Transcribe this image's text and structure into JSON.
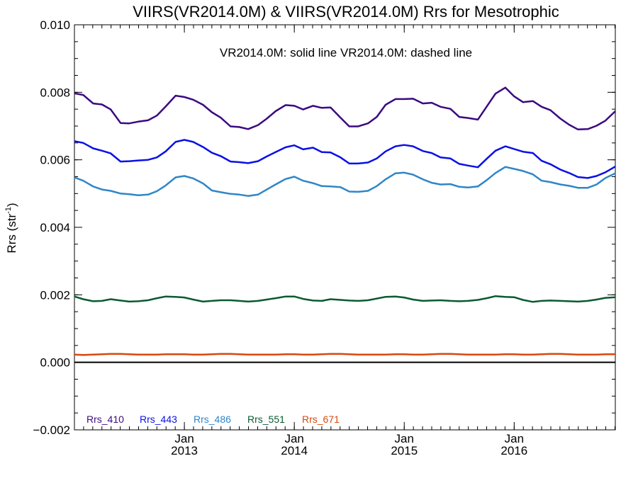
{
  "chart_data": {
    "type": "line",
    "title": "VIIRS(VR2014.0M) & VIIRS(VR2014.0M)  Rrs for Mesotrophic",
    "annotation": "VR2014.0M: solid line   VR2014.0M: dashed line",
    "ylabel": "Rrs (str",
    "ylabel_sup": "-1",
    "ylabel_close": ")",
    "xlabel": "",
    "ylim": [
      -0.002,
      0.01
    ],
    "xlim": [
      2012.0,
      2016.92
    ],
    "grid": false,
    "legend_position": "bottom-left",
    "zero_line": 0.0,
    "y_ticks": [
      {
        "value": -0.002,
        "label": "−0.002"
      },
      {
        "value": 0.0,
        "label": "0.000"
      },
      {
        "value": 0.002,
        "label": "0.002"
      },
      {
        "value": 0.004,
        "label": "0.004"
      },
      {
        "value": 0.006,
        "label": "0.006"
      },
      {
        "value": 0.008,
        "label": "0.008"
      },
      {
        "value": 0.01,
        "label": "0.010"
      }
    ],
    "y_minor_step": 0.0005,
    "x_ticks": [
      {
        "value": 2013.0,
        "month": "Jan",
        "year": "2013"
      },
      {
        "value": 2014.0,
        "month": "Jan",
        "year": "2014"
      },
      {
        "value": 2015.0,
        "month": "Jan",
        "year": "2015"
      },
      {
        "value": 2016.0,
        "month": "Jan",
        "year": "2016"
      }
    ],
    "x_minor_step": 0.08333,
    "x": [
      2012.0,
      2012.08,
      2012.17,
      2012.25,
      2012.33,
      2012.42,
      2012.5,
      2012.58,
      2012.67,
      2012.75,
      2012.83,
      2012.92,
      2013.0,
      2013.08,
      2013.17,
      2013.25,
      2013.33,
      2013.42,
      2013.5,
      2013.58,
      2013.67,
      2013.75,
      2013.83,
      2013.92,
      2014.0,
      2014.08,
      2014.17,
      2014.25,
      2014.33,
      2014.42,
      2014.5,
      2014.58,
      2014.67,
      2014.75,
      2014.83,
      2014.92,
      2015.0,
      2015.08,
      2015.17,
      2015.25,
      2015.33,
      2015.42,
      2015.5,
      2015.58,
      2015.67,
      2015.75,
      2015.83,
      2015.92,
      2016.0,
      2016.08,
      2016.17,
      2016.25,
      2016.33,
      2016.42,
      2016.5,
      2016.58,
      2016.67,
      2016.75,
      2016.83,
      2016.92
    ],
    "series": [
      {
        "name": "Rrs_410",
        "color": "#3b0a80",
        "values": [
          0.00797,
          0.00792,
          0.00767,
          0.00764,
          0.00749,
          0.00709,
          0.00708,
          0.00713,
          0.00717,
          0.00731,
          0.00758,
          0.0079,
          0.00786,
          0.00778,
          0.00763,
          0.00741,
          0.00725,
          0.00699,
          0.00697,
          0.00691,
          0.00703,
          0.00722,
          0.00744,
          0.00762,
          0.0076,
          0.00749,
          0.0076,
          0.00754,
          0.00755,
          0.00725,
          0.00699,
          0.00699,
          0.00708,
          0.00727,
          0.00763,
          0.0078,
          0.0078,
          0.00781,
          0.00767,
          0.00769,
          0.00757,
          0.00751,
          0.00727,
          0.00724,
          0.00719,
          0.00758,
          0.00796,
          0.00814,
          0.00788,
          0.00771,
          0.00774,
          0.00757,
          0.00747,
          0.00722,
          0.00704,
          0.0069,
          0.00691,
          0.00701,
          0.00716,
          0.00744
        ]
      },
      {
        "name": "Rrs_443",
        "color": "#0a10e6",
        "values": [
          0.00655,
          0.0065,
          0.00634,
          0.00627,
          0.00619,
          0.00595,
          0.00596,
          0.00598,
          0.006,
          0.00607,
          0.00625,
          0.00653,
          0.00659,
          0.00653,
          0.00638,
          0.00621,
          0.00611,
          0.00595,
          0.00593,
          0.0059,
          0.00596,
          0.0061,
          0.00623,
          0.00637,
          0.00643,
          0.00631,
          0.00636,
          0.00623,
          0.00622,
          0.00607,
          0.00589,
          0.00589,
          0.00592,
          0.00604,
          0.00625,
          0.0064,
          0.00644,
          0.0064,
          0.00626,
          0.0062,
          0.00607,
          0.00604,
          0.00588,
          0.00583,
          0.00578,
          0.00603,
          0.00627,
          0.0064,
          0.00632,
          0.00624,
          0.0062,
          0.00597,
          0.00587,
          0.00571,
          0.00561,
          0.00549,
          0.00546,
          0.00552,
          0.00563,
          0.0058
        ]
      },
      {
        "name": "Rrs_486",
        "color": "#2f86c8",
        "values": [
          0.00548,
          0.00538,
          0.00521,
          0.00512,
          0.00508,
          0.005,
          0.00498,
          0.00495,
          0.00497,
          0.00507,
          0.00524,
          0.00548,
          0.00552,
          0.00545,
          0.0053,
          0.00509,
          0.00504,
          0.00499,
          0.00497,
          0.00493,
          0.00497,
          0.00512,
          0.00527,
          0.00543,
          0.0055,
          0.00538,
          0.00531,
          0.00522,
          0.00521,
          0.00519,
          0.00506,
          0.00505,
          0.00508,
          0.00522,
          0.00542,
          0.0056,
          0.00562,
          0.00556,
          0.00542,
          0.00532,
          0.00527,
          0.00528,
          0.0052,
          0.00518,
          0.00521,
          0.0054,
          0.00561,
          0.00579,
          0.00573,
          0.00567,
          0.00557,
          0.00538,
          0.00534,
          0.00527,
          0.00523,
          0.00517,
          0.00517,
          0.00527,
          0.00546,
          0.0056
        ]
      },
      {
        "name": "Rrs_551",
        "color": "#0a5a30",
        "values": [
          0.00195,
          0.00187,
          0.00181,
          0.00182,
          0.00187,
          0.00183,
          0.0018,
          0.00181,
          0.00184,
          0.0019,
          0.00195,
          0.00194,
          0.00192,
          0.00186,
          0.0018,
          0.00182,
          0.00184,
          0.00184,
          0.00182,
          0.0018,
          0.00182,
          0.00186,
          0.0019,
          0.00195,
          0.00195,
          0.00188,
          0.00183,
          0.00182,
          0.00187,
          0.00185,
          0.00183,
          0.00182,
          0.00184,
          0.00189,
          0.00194,
          0.00195,
          0.00192,
          0.00186,
          0.00182,
          0.00183,
          0.00184,
          0.00182,
          0.00181,
          0.00182,
          0.00185,
          0.0019,
          0.00196,
          0.00194,
          0.00193,
          0.00185,
          0.00179,
          0.00182,
          0.00183,
          0.00182,
          0.00181,
          0.0018,
          0.00182,
          0.00186,
          0.00191,
          0.00193
        ]
      },
      {
        "name": "Rrs_671",
        "color": "#d6480e",
        "values": [
          0.00023,
          0.00022,
          0.00023,
          0.00024,
          0.00025,
          0.00025,
          0.00024,
          0.00023,
          0.00023,
          0.00023,
          0.00024,
          0.00024,
          0.00024,
          0.00023,
          0.00023,
          0.00024,
          0.00025,
          0.00025,
          0.00024,
          0.00023,
          0.00023,
          0.00023,
          0.00023,
          0.00024,
          0.00024,
          0.00023,
          0.00023,
          0.00024,
          0.00025,
          0.00025,
          0.00024,
          0.00023,
          0.00023,
          0.00023,
          0.00023,
          0.00024,
          0.00024,
          0.00023,
          0.00023,
          0.00024,
          0.00025,
          0.00025,
          0.00024,
          0.00023,
          0.00023,
          0.00023,
          0.00023,
          0.00024,
          0.00024,
          0.00023,
          0.00023,
          0.00024,
          0.00025,
          0.00025,
          0.00024,
          0.00023,
          0.00023,
          0.00023,
          0.00024,
          0.00024
        ]
      }
    ]
  }
}
